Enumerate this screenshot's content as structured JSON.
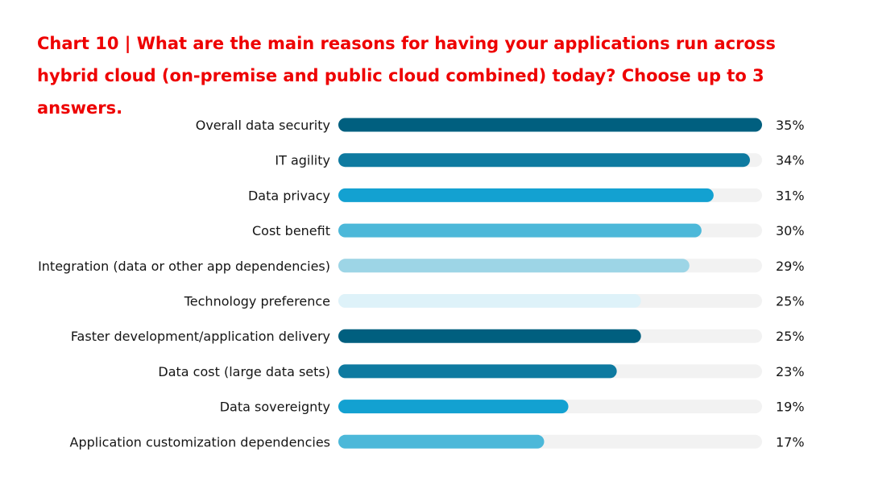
{
  "title": "Chart 10 | What are the main reasons for having your applications run across hybrid cloud (on-premise and public cloud combined) today? Choose up to 3 answers.",
  "chart_data": {
    "type": "bar",
    "orientation": "horizontal",
    "title": "Chart 10 | What are the main reasons for having your applications run across hybrid cloud (on-premise and public cloud combined) today? Choose up to 3 answers.",
    "categories": [
      "Overall data security",
      "IT agility",
      "Data privacy",
      "Cost benefit",
      "Integration (data or other app dependencies)",
      "Technology preference",
      "Faster development/application delivery",
      "Data cost (large data sets)",
      "Data sovereignty",
      "Application customization dependencies"
    ],
    "values": [
      35,
      34,
      31,
      30,
      29,
      25,
      25,
      23,
      19,
      17
    ],
    "value_labels": [
      "35%",
      "34%",
      "31%",
      "30%",
      "29%",
      "25%",
      "25%",
      "23%",
      "19%",
      "17%"
    ],
    "xlim": [
      0,
      35
    ],
    "unit": "%",
    "grid": false,
    "legend": "none",
    "colors": [
      "#005f7f",
      "#0e7aa0",
      "#13a1d1",
      "#4cb8d9",
      "#9dd5e6",
      "#def2f9",
      "#005f7f",
      "#0e7aa0",
      "#13a1d1",
      "#4cb8d9"
    ],
    "track_color": "#f2f2f2"
  }
}
